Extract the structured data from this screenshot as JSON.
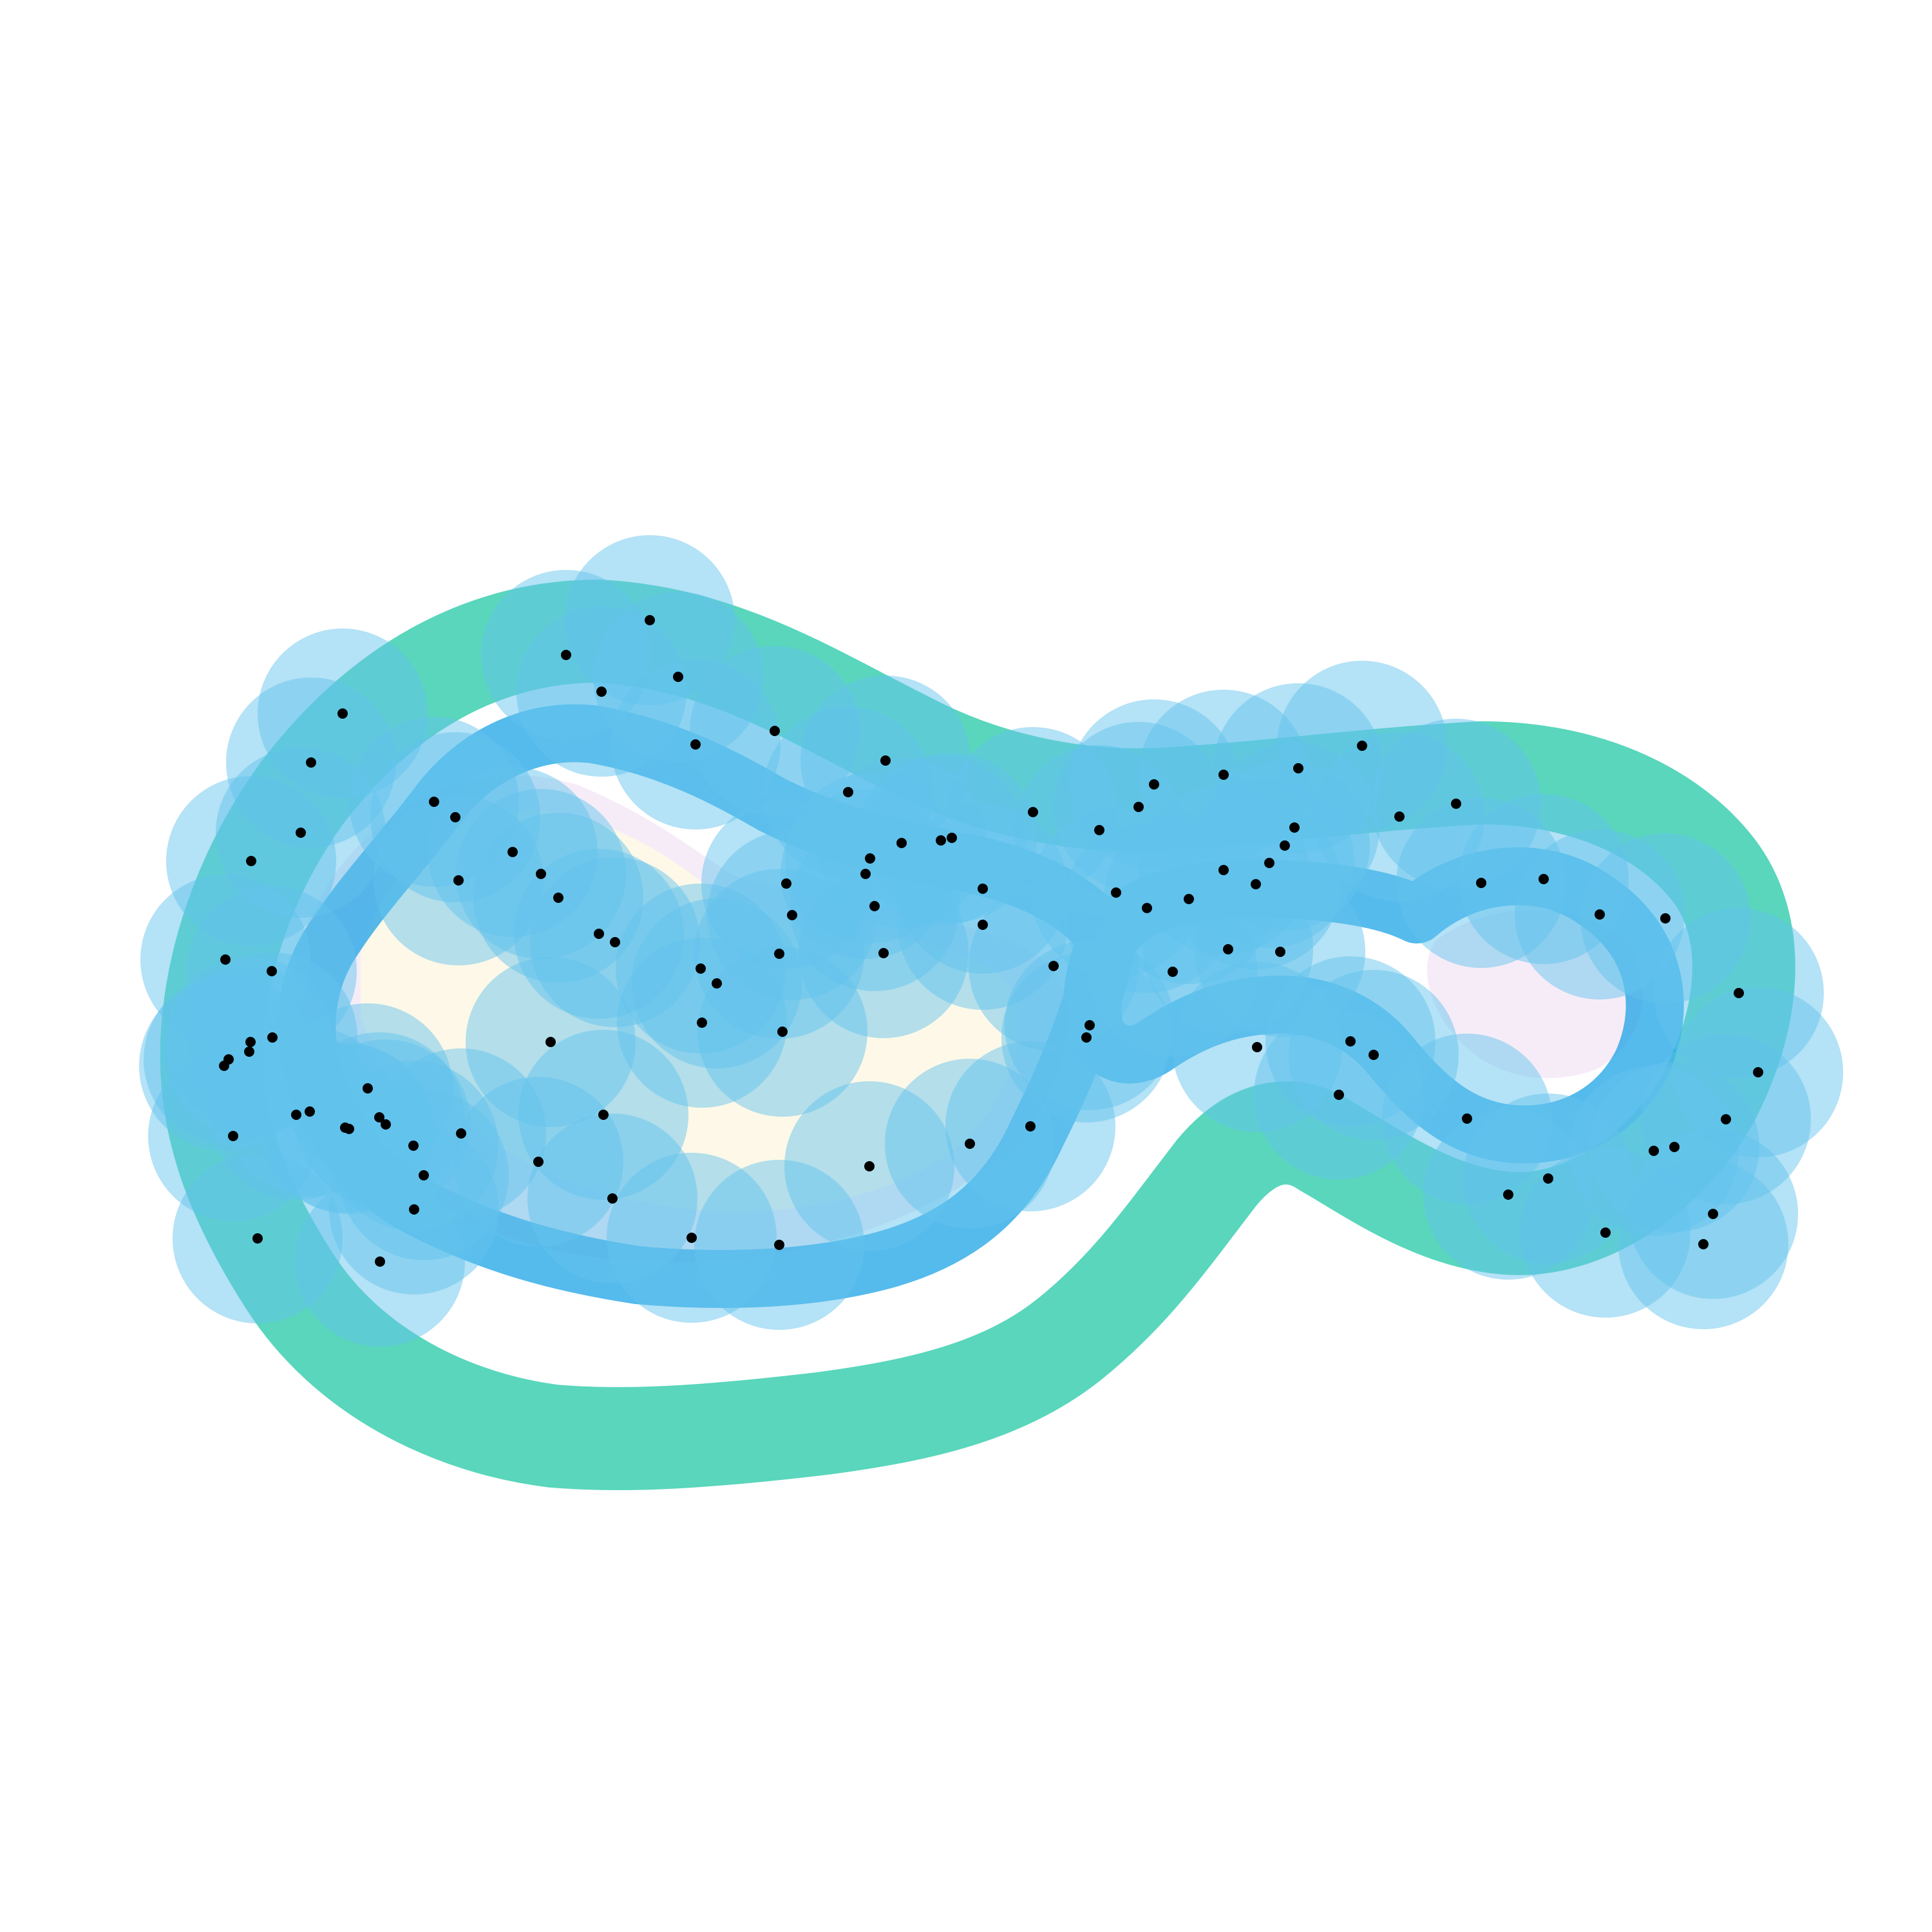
{
  "colors": {
    "background": "#ffffff",
    "inner_fill": "#fdf8e8",
    "inner_halo": "#f6ecf8",
    "band_teal": "#3ccfb0",
    "band_blue": "#1ca3e6",
    "circle": "#62c3ec",
    "point": "#000000"
  },
  "chart_data": {
    "type": "scatter",
    "series": [
      {
        "x": [
          1009,
          879,
          934,
          1053,
          1080,
          1203,
          1317,
          1375,
          1478,
          1604,
          1768,
          1900,
          1846,
          1733,
          1636,
          1526,
          1372,
          1215,
          1090,
          855,
          937,
          642,
          658,
          643,
          590,
          400,
          362,
          355,
          422,
          350,
          390,
          483,
          532,
          467,
          707,
          796,
          840,
          674,
          712,
          867,
          930,
          955,
          1088,
          1113,
          1210,
          1230,
          1221,
          1358,
          1344,
          1351,
          1400,
          1461,
          1526,
          1707,
          1792,
          1900,
          2010,
          2016,
          2115,
          2173,
          2261,
          2300,
          2397,
          2484,
          2586,
          2700,
          2730,
          2680,
          2600,
          2660,
          2645,
          2568,
          2493,
          2404,
          2342,
          2278,
          2133,
          2097,
          2079,
          1952,
          1988,
          1907,
          1950,
          1971,
          1995,
          1781,
          1821,
          1692,
          1687,
          1600,
          1506,
          1350,
          1210,
          1074,
          951,
          836,
          716,
          589,
          536,
          460,
          423,
          387,
          389,
          348,
          481,
          542,
          571,
          599
        ],
        "y": [
          963,
          1017,
          1074,
          1051,
          1156,
          1135,
          1230,
          1181,
          1301,
          1261,
          1253,
          1351,
          1396,
          1386,
          1500,
          1436,
          1480,
          1602,
          1588,
          1618,
          1731,
          1779,
          1825,
          1878,
          1959,
          1923,
          1764,
          1645,
          1508,
          1490,
          1337,
          1184,
          1108,
          1293,
          1269,
          1323,
          1357,
          1245,
          1367,
          1394,
          1450,
          1463,
          1504,
          1527,
          1481,
          1421,
          1372,
          1407,
          1357,
          1333,
          1309,
          1305,
          1380,
          1289,
          1218,
          1203,
          1285,
          1193,
          1158,
          1268,
          1248,
          1371,
          1365,
          1420,
          1426,
          1542,
          1665,
          1738,
          1781,
          1885,
          1932,
          1787,
          1914,
          1830,
          1855,
          1737,
          1638,
          1617,
          1700,
          1626,
          1478,
          1474,
          1373,
          1340,
          1313,
          1410,
          1509,
          1592,
          1611,
          1749,
          1776,
          1811,
          1933,
          1922,
          1861,
          1804,
          1760,
          1735,
          1751,
          1731,
          1611,
          1633,
          1618,
          1655,
          1726,
          1753,
          1690,
          1746
        ]
      }
    ]
  }
}
